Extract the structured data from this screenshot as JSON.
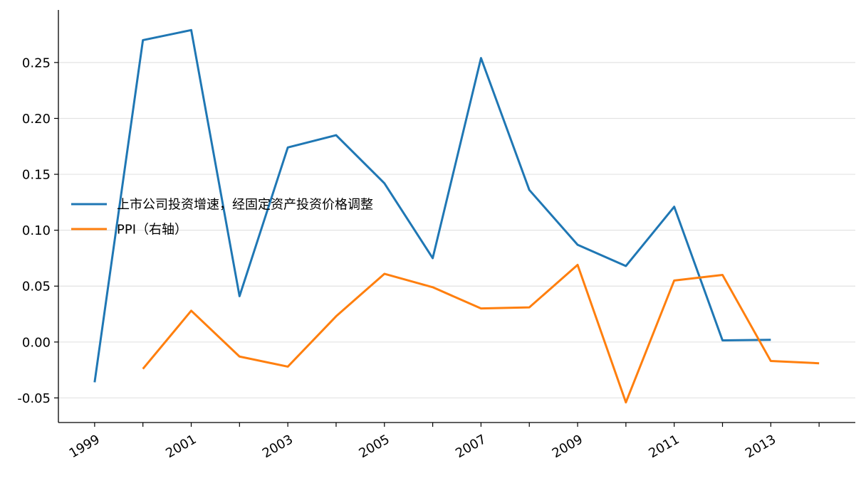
{
  "chart_data": {
    "type": "line",
    "title": "",
    "xlabel": "",
    "ylabel": "",
    "x_range": [
      1998.25,
      2014.75
    ],
    "ylim": [
      -0.072,
      0.297
    ],
    "y_ticks": [
      -0.05,
      0.0,
      0.05,
      0.1,
      0.15,
      0.2,
      0.25
    ],
    "y_tick_labels": [
      "-0.05",
      "0.00",
      "0.05",
      "0.10",
      "0.15",
      "0.20",
      "0.25"
    ],
    "x_ticks": [
      1999,
      2001,
      2003,
      2005,
      2007,
      2009,
      2011,
      2013
    ],
    "x_tick_labels": [
      "1999",
      "2001",
      "2003",
      "2005",
      "2007",
      "2009",
      "2011",
      "2013"
    ],
    "x_minor_ticks": [
      2000,
      2002,
      2004,
      2006,
      2008,
      2010,
      2012,
      2014
    ],
    "grid": "horizontal",
    "legend_position": "center-left",
    "series": [
      {
        "name": "上市公司投资增速，经固定资产投资价格调整",
        "color": "#1f77b4",
        "x": [
          1999,
          2000,
          2001,
          2002,
          2003,
          2004,
          2005,
          2006,
          2007,
          2008,
          2009,
          2010,
          2011,
          2012,
          2013
        ],
        "y": [
          -0.036,
          0.27,
          0.279,
          0.041,
          0.174,
          0.185,
          0.142,
          0.075,
          0.254,
          0.136,
          0.087,
          0.068,
          0.121,
          0.0015,
          0.002
        ]
      },
      {
        "name": "PPI（右轴）",
        "color": "#ff7f0e",
        "x": [
          2000,
          2001,
          2002,
          2003,
          2004,
          2005,
          2006,
          2007,
          2008,
          2009,
          2010,
          2011,
          2012,
          2013,
          2014
        ],
        "y": [
          -0.024,
          0.028,
          -0.013,
          -0.022,
          0.023,
          0.061,
          0.049,
          0.03,
          0.031,
          0.069,
          -0.054,
          0.055,
          0.06,
          -0.017,
          -0.019
        ]
      }
    ]
  }
}
